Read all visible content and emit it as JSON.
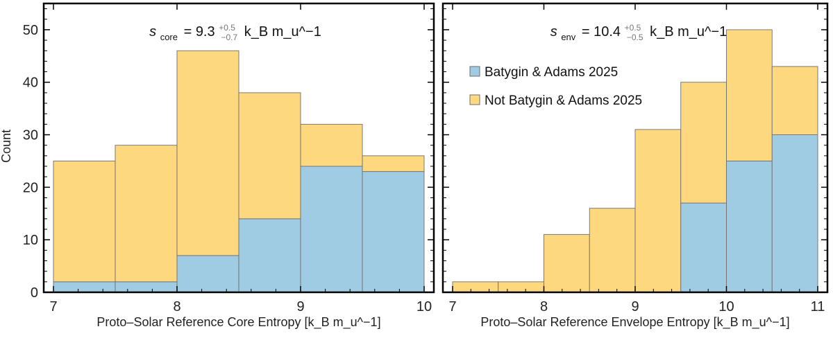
{
  "colors": {
    "batygin": "#9fcce3",
    "not_batygin": "#fdd87f",
    "bar_edge": "#6e6e6e",
    "frame": "#000000"
  },
  "ylabel": "Count",
  "legend": {
    "position": "upper-left of right panel",
    "items": [
      "Batygin & Adams 2025",
      "Not Batygin & Adams 2025"
    ]
  },
  "chart_data": [
    {
      "type": "bar",
      "stacked": true,
      "xlabel": "Proto–Solar Reference Core Entropy [k_B m_u^−1]",
      "ylabel": "Count",
      "annotation": {
        "symbol": "s",
        "sup": "⊙",
        "sub": "core",
        "value": "9.3",
        "plus": "+0.5",
        "minus": "−0.7",
        "unit": "k_B m_u^−1"
      },
      "xlim": [
        7,
        10
      ],
      "ylim": [
        0,
        55
      ],
      "xticks": [
        "7",
        "8",
        "9",
        "10"
      ],
      "yticks": [
        "0",
        "10",
        "20",
        "30",
        "40",
        "50"
      ],
      "bin_edges": [
        7,
        7.5,
        8,
        8.5,
        9,
        9.5,
        10
      ],
      "series": [
        {
          "name": "Batygin & Adams 2025",
          "values": [
            2,
            2,
            7,
            14,
            24,
            23
          ]
        },
        {
          "name": "Not Batygin & Adams 2025",
          "values": [
            23,
            26,
            39,
            24,
            8,
            3
          ]
        }
      ],
      "totals": [
        25,
        28,
        46,
        38,
        32,
        26
      ]
    },
    {
      "type": "bar",
      "stacked": true,
      "xlabel": "Proto–Solar Reference Envelope Entropy [k_B m_u^−1]",
      "annotation": {
        "symbol": "s",
        "sup": "⊙",
        "sub": "env",
        "value": "10.4",
        "plus": "+0.5",
        "minus": "−0.5",
        "unit": "k_B m_u^−1"
      },
      "xlim": [
        7,
        11
      ],
      "ylim": [
        0,
        55
      ],
      "xticks": [
        "7",
        "8",
        "9",
        "10",
        "11"
      ],
      "yticks": [
        "0",
        "10",
        "20",
        "30",
        "40",
        "50"
      ],
      "bin_edges": [
        7,
        7.5,
        8,
        8.5,
        9,
        9.5,
        10,
        10.5,
        11
      ],
      "series": [
        {
          "name": "Batygin & Adams 2025",
          "values": [
            0,
            0,
            0,
            0,
            0,
            17,
            25,
            30
          ]
        },
        {
          "name": "Not Batygin & Adams 2025",
          "values": [
            2,
            2,
            11,
            16,
            31,
            23,
            25,
            13
          ]
        }
      ],
      "totals": [
        2,
        2,
        11,
        16,
        31,
        40,
        50,
        43
      ]
    }
  ]
}
